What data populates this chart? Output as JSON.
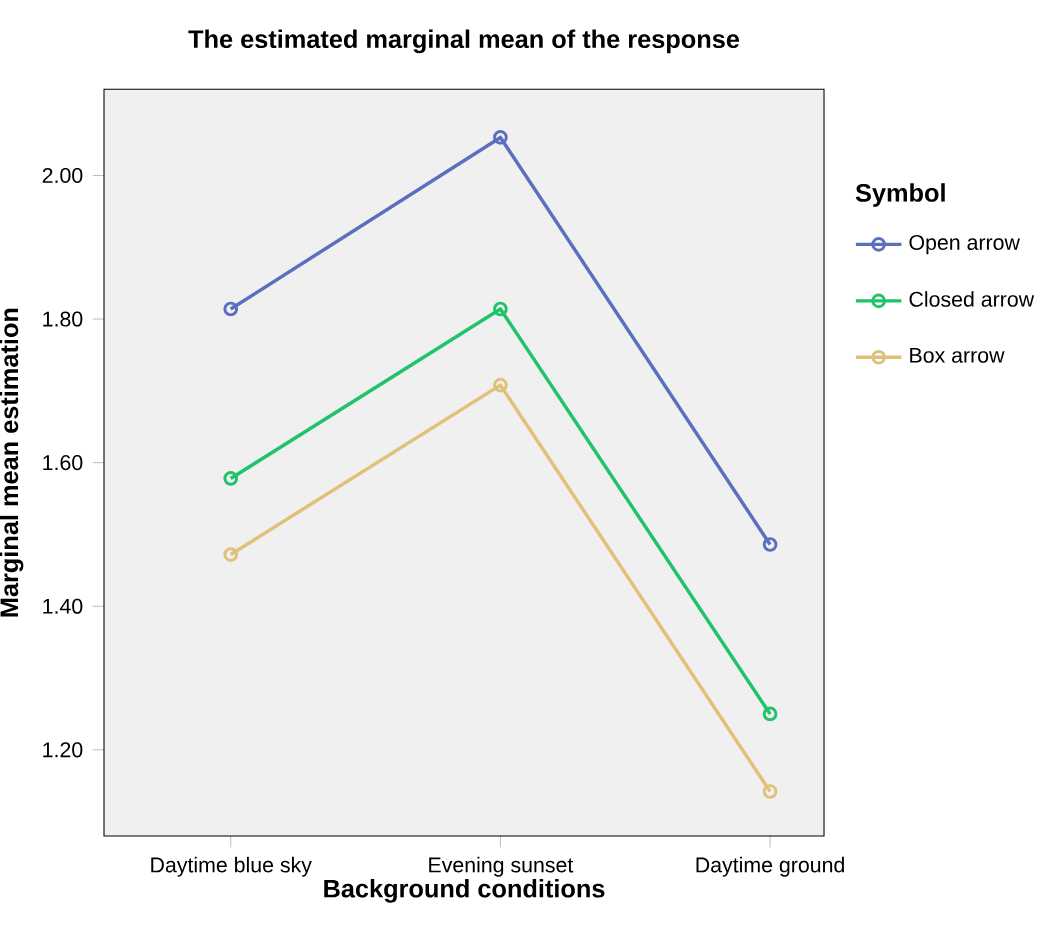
{
  "chart_data": {
    "type": "line",
    "title": "The estimated marginal mean of the response",
    "xlabel": "Background conditions",
    "ylabel": "Marginal mean estimation",
    "legend_title": "Symbol",
    "legend": "right",
    "marker": "circle",
    "line_style": "solid",
    "grid": false,
    "categories": [
      "Daytime blue sky",
      "Evening sunset",
      "Daytime ground"
    ],
    "ylim": [
      1.08,
      2.12
    ],
    "yticks": [
      {
        "value": 1.2,
        "label": "1.20"
      },
      {
        "value": 1.4,
        "label": "1.40"
      },
      {
        "value": 1.6,
        "label": "1.60"
      },
      {
        "value": 1.8,
        "label": "1.80"
      },
      {
        "value": 2.0,
        "label": "2.00"
      }
    ],
    "series": [
      {
        "name": "Open arrow",
        "color": "#5b6fbf",
        "values": [
          1.814,
          2.053,
          1.486
        ]
      },
      {
        "name": "Closed arrow",
        "color": "#1fc46a",
        "values": [
          1.578,
          1.814,
          1.25
        ]
      },
      {
        "name": "Box arrow",
        "color": "#e0c07a",
        "values": [
          1.472,
          1.708,
          1.142
        ]
      }
    ]
  }
}
